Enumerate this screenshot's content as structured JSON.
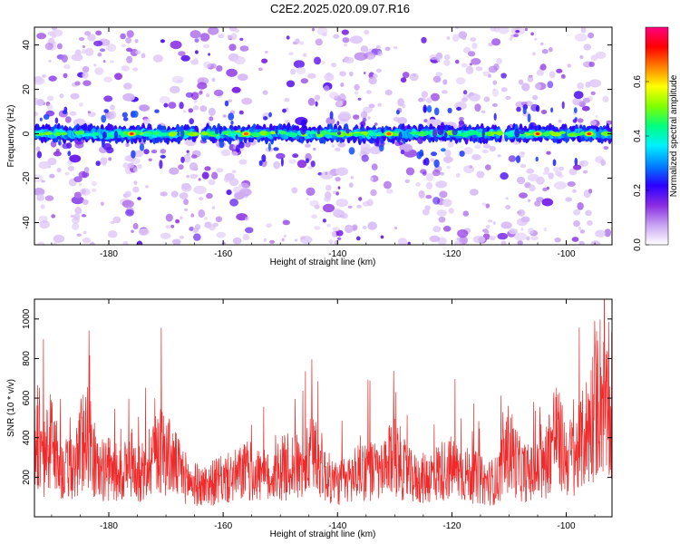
{
  "title": "C2E2.2025.020.09.07.R16",
  "colors": {
    "snr_line": "#ee2a2a",
    "colormap": [
      "#ffffff",
      "#c9a3f2",
      "#8a2be2",
      "#2a00ff",
      "#0080ff",
      "#00f0ff",
      "#00ff80",
      "#80ff00",
      "#ffff00",
      "#ff8000",
      "#ff0000",
      "#ff0080"
    ]
  },
  "chart_data": [
    {
      "type": "heatmap",
      "title": "C2E2.2025.020.09.07.R16",
      "xlabel": "Height of straight line (km)",
      "ylabel": "Frequency (Hz)",
      "xlim": [
        -193,
        -92
      ],
      "ylim": [
        -50,
        48
      ],
      "x_ticks": [
        -180,
        -160,
        -140,
        -120,
        -100
      ],
      "x_tick_labels": [
        "-180",
        "-160",
        "-140",
        "-120",
        "-100"
      ],
      "y_ticks": [
        -40,
        -20,
        0,
        20,
        40
      ],
      "y_tick_labels": [
        "-40",
        "-20",
        "0",
        "20",
        "40"
      ],
      "grid": false,
      "description_band": "Strong narrow band at frequency ~0 Hz across all heights, with scattered weak blobs elsewhere",
      "peaks": [
        {
          "x": -176,
          "y": 0,
          "value": 0.75
        },
        {
          "x": -156,
          "y": 0,
          "value": 0.65
        },
        {
          "x": -131,
          "y": 0,
          "value": 0.7
        },
        {
          "x": -105,
          "y": 0,
          "value": 0.78
        },
        {
          "x": -96,
          "y": 0,
          "value": 0.72
        }
      ],
      "colorbar": {
        "label": "Normalized spectral amplitude",
        "range": [
          0,
          0.8
        ],
        "ticks": [
          0,
          0.2,
          0.4,
          0.6
        ],
        "tick_labels": [
          "0.0",
          "0.2",
          "0.4",
          "0.6"
        ]
      }
    },
    {
      "type": "line",
      "xlabel": "Height of straight line (km)",
      "ylabel": "SNR (10 * v/v)",
      "xlim": [
        -193,
        -92
      ],
      "ylim": [
        0,
        1100
      ],
      "x_ticks": [
        -180,
        -160,
        -140,
        -120,
        -100
      ],
      "x_tick_labels": [
        "-180",
        "-160",
        "-140",
        "-120",
        "-100"
      ],
      "y_ticks": [
        200,
        400,
        600,
        800,
        1000
      ],
      "y_tick_labels": [
        "200",
        "400",
        "600",
        "800",
        "1000"
      ],
      "grid": false,
      "series": [
        {
          "x": [
            -192,
            -190,
            -188,
            -186,
            -184,
            -182,
            -180,
            -178,
            -176,
            -174,
            -172,
            -170,
            -168,
            -166,
            -164,
            -162,
            -160,
            -158,
            -156,
            -154,
            -152,
            -150,
            -148,
            -146,
            -144,
            -142,
            -140,
            -138,
            -136,
            -134,
            -132,
            -130,
            -128,
            -126,
            -124,
            -122,
            -120,
            -118,
            -116,
            -114,
            -112,
            -110,
            -108,
            -106,
            -104,
            -102,
            -100,
            -98,
            -96,
            -94,
            -92
          ],
          "y": [
            350,
            500,
            300,
            320,
            580,
            300,
            310,
            280,
            350,
            250,
            480,
            420,
            320,
            230,
            200,
            220,
            240,
            260,
            300,
            280,
            250,
            310,
            340,
            300,
            450,
            260,
            220,
            240,
            320,
            300,
            280,
            420,
            280,
            240,
            260,
            300,
            320,
            280,
            260,
            220,
            240,
            460,
            300,
            280,
            310,
            560,
            380,
            420,
            600,
            820,
            520
          ]
        }
      ]
    }
  ]
}
